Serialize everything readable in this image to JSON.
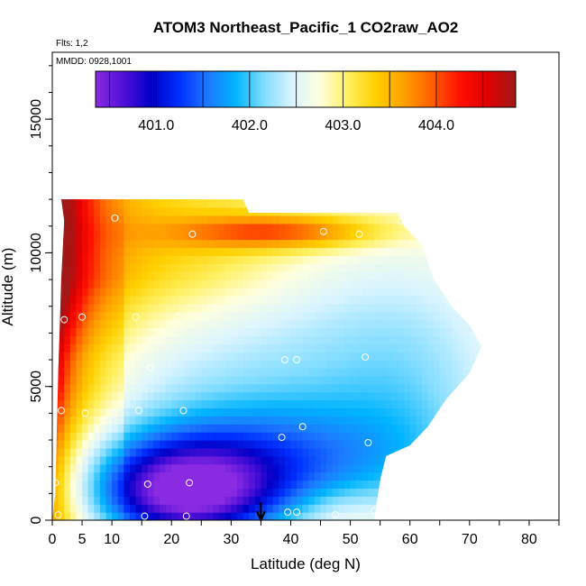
{
  "chart_data": {
    "type": "heatmap",
    "title": "ATOM3 Northeast_Pacific_1 CO2raw_AO2",
    "flights_note": "Flts: 1,2",
    "dates_note": "MMDD: 0928,1001",
    "xlabel": "Latitude (deg N)",
    "ylabel": "Altitude (m)",
    "xlim": [
      0,
      85
    ],
    "ylim": [
      0,
      17500
    ],
    "x_ticks": [
      0,
      5,
      10,
      20,
      30,
      40,
      50,
      60,
      70,
      80
    ],
    "y_ticks": [
      0,
      5000,
      10000,
      15000
    ],
    "colorbar": {
      "range": [
        400.35,
        404.85
      ],
      "ticks": [
        401.0,
        402.0,
        403.0,
        404.0
      ],
      "tick_labels": [
        "401.0",
        "402.0",
        "403.0",
        "404.0"
      ],
      "colors": [
        "#8a2be2",
        "#5010d8",
        "#0000c8",
        "#0030ff",
        "#1e78ff",
        "#00b4ff",
        "#80dcff",
        "#d8f4ff",
        "#ffffe0",
        "#fff060",
        "#ffd000",
        "#ffa000",
        "#ff6000",
        "#ff1000",
        "#e00000",
        "#a01818"
      ]
    },
    "flight_arrow_latitude": 35,
    "sample_points": [
      {
        "lat": 0.5,
        "alt": 1400
      },
      {
        "lat": 1,
        "alt": 200
      },
      {
        "lat": 1.5,
        "alt": 4100
      },
      {
        "lat": 2,
        "alt": 7500
      },
      {
        "lat": 5,
        "alt": 7600
      },
      {
        "lat": 5.5,
        "alt": 4000
      },
      {
        "lat": 10.5,
        "alt": 11300
      },
      {
        "lat": 14,
        "alt": 7600
      },
      {
        "lat": 14.5,
        "alt": 4100
      },
      {
        "lat": 15.5,
        "alt": 150
      },
      {
        "lat": 16,
        "alt": 1350
      },
      {
        "lat": 16.5,
        "alt": 5700
      },
      {
        "lat": 21,
        "alt": 7600
      },
      {
        "lat": 22,
        "alt": 4100
      },
      {
        "lat": 22.5,
        "alt": 150
      },
      {
        "lat": 23,
        "alt": 1400
      },
      {
        "lat": 23.5,
        "alt": 10700
      },
      {
        "lat": 38.5,
        "alt": 3100
      },
      {
        "lat": 39,
        "alt": 6000
      },
      {
        "lat": 39.5,
        "alt": 300
      },
      {
        "lat": 41,
        "alt": 300
      },
      {
        "lat": 41,
        "alt": 6000
      },
      {
        "lat": 42,
        "alt": 3500
      },
      {
        "lat": 45.5,
        "alt": 10800
      },
      {
        "lat": 47.5,
        "alt": 200
      },
      {
        "lat": 51.5,
        "alt": 10700
      },
      {
        "lat": 52.5,
        "alt": 6100
      },
      {
        "lat": 53,
        "alt": 2900
      },
      {
        "lat": 54,
        "alt": 350
      },
      {
        "lat": 58.5,
        "alt": 11200
      }
    ],
    "field_extent": {
      "south_edge_lat": 0,
      "top_altitude_by_lat": [
        [
          0.5,
          1000
        ],
        [
          1,
          5500
        ],
        [
          1.5,
          9000
        ],
        [
          2,
          11200
        ],
        [
          1.5,
          12000
        ],
        [
          32,
          12000
        ],
        [
          33,
          11500
        ],
        [
          58,
          11500
        ],
        [
          59,
          11000
        ],
        [
          62,
          10300
        ],
        [
          64,
          9000
        ],
        [
          67,
          8000
        ],
        [
          70,
          7300
        ],
        [
          72,
          6500
        ],
        [
          70,
          5500
        ],
        [
          66,
          4500
        ],
        [
          63,
          3500
        ],
        [
          60,
          2800
        ],
        [
          56,
          2400
        ],
        [
          55,
          1500
        ],
        [
          54,
          0
        ]
      ]
    },
    "value_field_description": "Gridded CO2 (ppm) vs latitude and altitude: low values (~401) below 2 km between 10 and 35 N; high values (~404-404.8) at low latitudes (<10 N) throughout the column and in a band near 10.8 km; moderate values (~402.5-403.3) at high latitudes."
  }
}
